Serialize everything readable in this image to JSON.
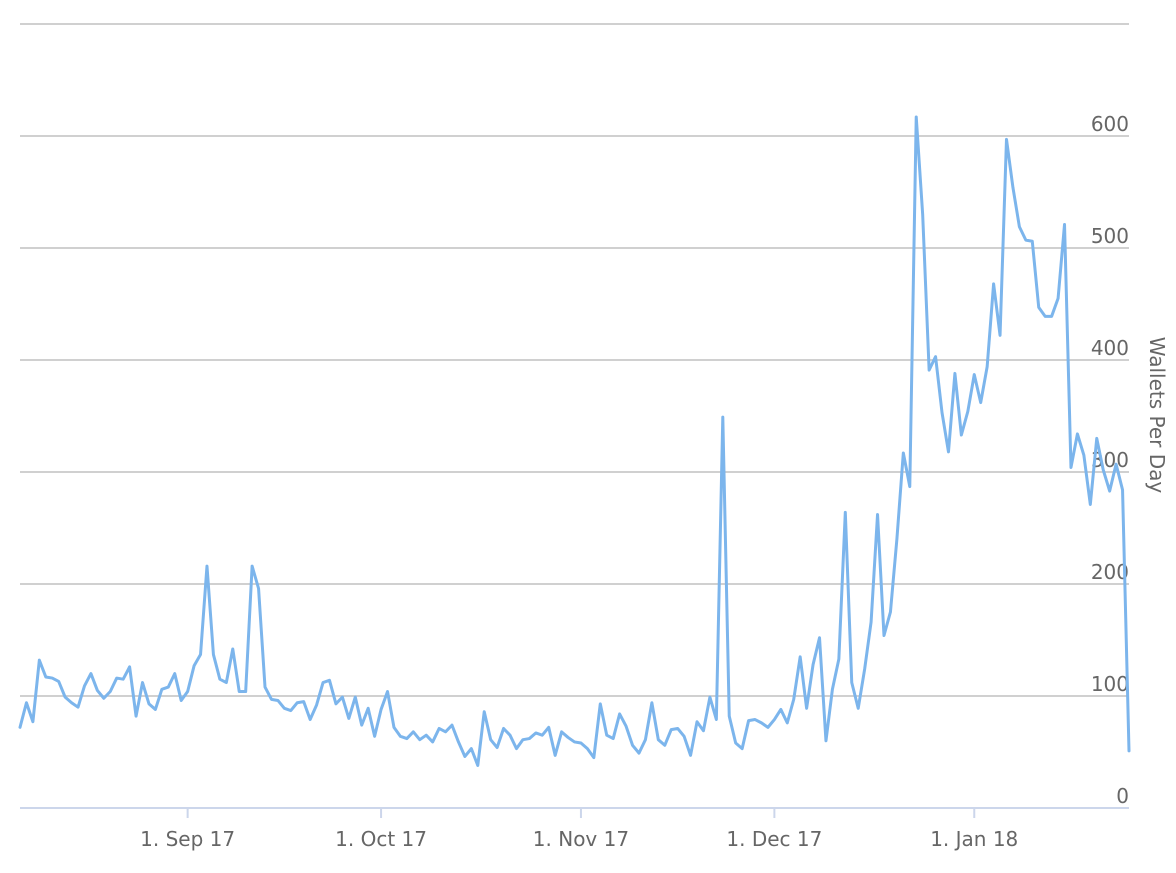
{
  "chart_data": {
    "type": "line",
    "y_label": "Wallets Per Day",
    "color": "#7cb5ec",
    "grid": true,
    "y_axis_side": "right",
    "x": [
      "2017-08-06",
      "2017-08-07",
      "2017-08-08",
      "2017-08-09",
      "2017-08-10",
      "2017-08-11",
      "2017-08-12",
      "2017-08-13",
      "2017-08-14",
      "2017-08-15",
      "2017-08-16",
      "2017-08-17",
      "2017-08-18",
      "2017-08-19",
      "2017-08-20",
      "2017-08-21",
      "2017-08-22",
      "2017-08-23",
      "2017-08-24",
      "2017-08-25",
      "2017-08-26",
      "2017-08-27",
      "2017-08-28",
      "2017-08-29",
      "2017-08-30",
      "2017-08-31",
      "2017-09-01",
      "2017-09-02",
      "2017-09-03",
      "2017-09-04",
      "2017-09-05",
      "2017-09-06",
      "2017-09-07",
      "2017-09-08",
      "2017-09-09",
      "2017-09-10",
      "2017-09-11",
      "2017-09-12",
      "2017-09-13",
      "2017-09-14",
      "2017-09-15",
      "2017-09-16",
      "2017-09-17",
      "2017-09-18",
      "2017-09-19",
      "2017-09-20",
      "2017-09-21",
      "2017-09-22",
      "2017-09-23",
      "2017-09-24",
      "2017-09-25",
      "2017-09-26",
      "2017-09-27",
      "2017-09-28",
      "2017-09-29",
      "2017-09-30",
      "2017-10-01",
      "2017-10-02",
      "2017-10-03",
      "2017-10-04",
      "2017-10-05",
      "2017-10-06",
      "2017-10-07",
      "2017-10-08",
      "2017-10-09",
      "2017-10-10",
      "2017-10-11",
      "2017-10-12",
      "2017-10-13",
      "2017-10-14",
      "2017-10-15",
      "2017-10-16",
      "2017-10-17",
      "2017-10-18",
      "2017-10-19",
      "2017-10-20",
      "2017-10-21",
      "2017-10-22",
      "2017-10-23",
      "2017-10-24",
      "2017-10-25",
      "2017-10-26",
      "2017-10-27",
      "2017-10-28",
      "2017-10-29",
      "2017-10-30",
      "2017-10-31",
      "2017-11-01",
      "2017-11-02",
      "2017-11-03",
      "2017-11-04",
      "2017-11-05",
      "2017-11-06",
      "2017-11-07",
      "2017-11-08",
      "2017-11-09",
      "2017-11-10",
      "2017-11-11",
      "2017-11-12",
      "2017-11-13",
      "2017-11-14",
      "2017-11-15",
      "2017-11-16",
      "2017-11-17",
      "2017-11-18",
      "2017-11-19",
      "2017-11-20",
      "2017-11-21",
      "2017-11-22",
      "2017-11-23",
      "2017-11-24",
      "2017-11-25",
      "2017-11-26",
      "2017-11-27",
      "2017-11-28",
      "2017-11-29",
      "2017-11-30",
      "2017-12-01",
      "2017-12-02",
      "2017-12-03",
      "2017-12-04",
      "2017-12-05",
      "2017-12-06",
      "2017-12-07",
      "2017-12-08",
      "2017-12-09",
      "2017-12-10",
      "2017-12-11",
      "2017-12-12",
      "2017-12-13",
      "2017-12-14",
      "2017-12-15",
      "2017-12-16",
      "2017-12-17",
      "2017-12-18",
      "2017-12-19",
      "2017-12-20",
      "2017-12-21",
      "2017-12-22",
      "2017-12-23",
      "2017-12-24",
      "2017-12-25",
      "2017-12-26",
      "2017-12-27",
      "2017-12-28",
      "2017-12-29",
      "2017-12-30",
      "2017-12-31",
      "2018-01-01",
      "2018-01-02",
      "2018-01-03",
      "2018-01-04",
      "2018-01-05",
      "2018-01-06",
      "2018-01-07",
      "2018-01-08",
      "2018-01-09",
      "2018-01-10",
      "2018-01-11",
      "2018-01-12",
      "2018-01-13",
      "2018-01-14",
      "2018-01-15",
      "2018-01-16",
      "2018-01-17",
      "2018-01-18",
      "2018-01-19",
      "2018-01-20",
      "2018-01-21",
      "2018-01-22",
      "2018-01-23",
      "2018-01-24",
      "2018-01-25"
    ],
    "values": [
      72,
      94,
      77,
      132,
      117,
      116,
      113,
      99,
      94,
      90,
      109,
      120,
      105,
      98,
      104,
      116,
      115,
      126,
      82,
      112,
      93,
      88,
      106,
      108,
      120,
      96,
      104,
      127,
      137,
      216,
      137,
      115,
      112,
      142,
      104,
      104,
      216,
      196,
      108,
      97,
      96,
      89,
      87,
      94,
      95,
      79,
      92,
      112,
      114,
      93,
      99,
      80,
      99,
      74,
      89,
      64,
      88,
      104,
      72,
      64,
      62,
      68,
      61,
      65,
      59,
      71,
      68,
      74,
      59,
      46,
      53,
      38,
      86,
      61,
      54,
      71,
      65,
      53,
      61,
      62,
      67,
      65,
      72,
      47,
      68,
      63,
      59,
      58,
      53,
      45,
      93,
      65,
      62,
      84,
      73,
      56,
      49,
      61,
      94,
      61,
      56,
      70,
      71,
      64,
      47,
      77,
      69,
      99,
      79,
      349,
      82,
      58,
      53,
      78,
      79,
      76,
      72,
      79,
      88,
      76,
      97,
      135,
      89,
      128,
      152,
      60,
      106,
      133,
      264,
      112,
      89,
      124,
      166,
      262,
      154,
      175,
      240,
      317,
      287,
      617,
      530,
      391,
      403,
      353,
      318,
      388,
      333,
      354,
      387,
      362,
      394,
      468,
      422,
      597,
      554,
      519,
      507,
      506,
      447,
      439,
      439,
      455,
      521,
      304,
      334,
      315,
      271,
      330,
      302,
      283,
      307,
      284,
      51
    ],
    "xlim": [
      "2017-08-06",
      "2018-01-25"
    ],
    "xticks": [
      {
        "value": "2017-09-01",
        "label": "1. Sep 17"
      },
      {
        "value": "2017-10-01",
        "label": "1. Oct 17"
      },
      {
        "value": "2017-11-01",
        "label": "1. Nov 17"
      },
      {
        "value": "2017-12-01",
        "label": "1. Dec 17"
      },
      {
        "value": "2018-01-01",
        "label": "1. Jan 18"
      }
    ],
    "ylim": [
      0,
      700
    ],
    "yticks": [
      0,
      100,
      200,
      300,
      400,
      500,
      600
    ]
  }
}
